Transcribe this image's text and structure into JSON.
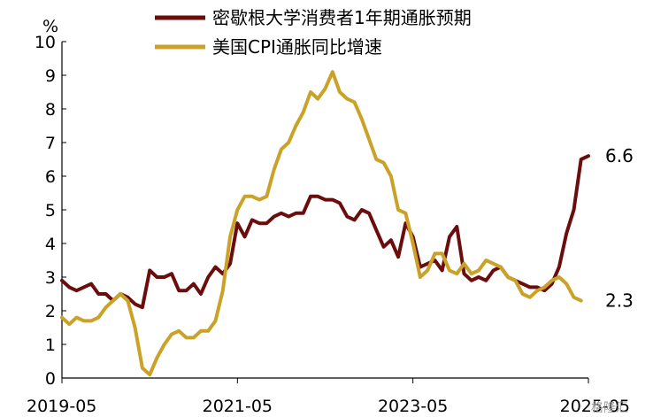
{
  "chart_data": {
    "type": "line",
    "ylabel": "%",
    "ylim": [
      0,
      10
    ],
    "yticks": [
      "0",
      "1",
      "2",
      "3",
      "4",
      "5",
      "6",
      "7",
      "8",
      "9",
      "10"
    ],
    "xticks": [
      "2019-05",
      "2021-05",
      "2023-05",
      "2025-05"
    ],
    "xlim": [
      "2019-05",
      "2025-05"
    ],
    "legend": "top",
    "grid": false,
    "series": [
      {
        "name": "密歇根大学消费者1年期通胀预期",
        "color": "#6b0d0d",
        "end_label": "6.6",
        "points": [
          [
            "2019-05",
            2.9
          ],
          [
            "2019-06",
            2.7
          ],
          [
            "2019-07",
            2.6
          ],
          [
            "2019-08",
            2.7
          ],
          [
            "2019-09",
            2.8
          ],
          [
            "2019-10",
            2.5
          ],
          [
            "2019-11",
            2.5
          ],
          [
            "2019-12",
            2.3
          ],
          [
            "2020-01",
            2.5
          ],
          [
            "2020-02",
            2.4
          ],
          [
            "2020-03",
            2.2
          ],
          [
            "2020-04",
            2.1
          ],
          [
            "2020-05",
            3.2
          ],
          [
            "2020-06",
            3.0
          ],
          [
            "2020-07",
            3.0
          ],
          [
            "2020-08",
            3.1
          ],
          [
            "2020-09",
            2.6
          ],
          [
            "2020-10",
            2.6
          ],
          [
            "2020-11",
            2.8
          ],
          [
            "2020-12",
            2.5
          ],
          [
            "2021-01",
            3.0
          ],
          [
            "2021-02",
            3.3
          ],
          [
            "2021-03",
            3.1
          ],
          [
            "2021-04",
            3.4
          ],
          [
            "2021-05",
            4.6
          ],
          [
            "2021-06",
            4.2
          ],
          [
            "2021-07",
            4.7
          ],
          [
            "2021-08",
            4.6
          ],
          [
            "2021-09",
            4.6
          ],
          [
            "2021-10",
            4.8
          ],
          [
            "2021-11",
            4.9
          ],
          [
            "2021-12",
            4.8
          ],
          [
            "2022-01",
            4.9
          ],
          [
            "2022-02",
            4.9
          ],
          [
            "2022-03",
            5.4
          ],
          [
            "2022-04",
            5.4
          ],
          [
            "2022-05",
            5.3
          ],
          [
            "2022-06",
            5.3
          ],
          [
            "2022-07",
            5.2
          ],
          [
            "2022-08",
            4.8
          ],
          [
            "2022-09",
            4.7
          ],
          [
            "2022-10",
            5.0
          ],
          [
            "2022-11",
            4.9
          ],
          [
            "2022-12",
            4.4
          ],
          [
            "2023-01",
            3.9
          ],
          [
            "2023-02",
            4.1
          ],
          [
            "2023-03",
            3.6
          ],
          [
            "2023-04",
            4.6
          ],
          [
            "2023-05",
            4.2
          ],
          [
            "2023-06",
            3.3
          ],
          [
            "2023-07",
            3.4
          ],
          [
            "2023-08",
            3.5
          ],
          [
            "2023-09",
            3.2
          ],
          [
            "2023-10",
            4.2
          ],
          [
            "2023-11",
            4.5
          ],
          [
            "2023-12",
            3.1
          ],
          [
            "2024-01",
            2.9
          ],
          [
            "2024-02",
            3.0
          ],
          [
            "2024-03",
            2.9
          ],
          [
            "2024-04",
            3.2
          ],
          [
            "2024-05",
            3.3
          ],
          [
            "2024-06",
            3.0
          ],
          [
            "2024-07",
            2.9
          ],
          [
            "2024-08",
            2.8
          ],
          [
            "2024-09",
            2.7
          ],
          [
            "2024-10",
            2.7
          ],
          [
            "2024-11",
            2.6
          ],
          [
            "2024-12",
            2.8
          ],
          [
            "2025-01",
            3.3
          ],
          [
            "2025-02",
            4.3
          ],
          [
            "2025-03",
            5.0
          ],
          [
            "2025-04",
            6.5
          ],
          [
            "2025-05",
            6.6
          ]
        ]
      },
      {
        "name": "美国CPI通胀同比增速",
        "color": "#c9a227",
        "end_label": "2.3",
        "points": [
          [
            "2019-05",
            1.8
          ],
          [
            "2019-06",
            1.6
          ],
          [
            "2019-07",
            1.8
          ],
          [
            "2019-08",
            1.7
          ],
          [
            "2019-09",
            1.7
          ],
          [
            "2019-10",
            1.8
          ],
          [
            "2019-11",
            2.1
          ],
          [
            "2019-12",
            2.3
          ],
          [
            "2020-01",
            2.5
          ],
          [
            "2020-02",
            2.3
          ],
          [
            "2020-03",
            1.5
          ],
          [
            "2020-04",
            0.3
          ],
          [
            "2020-05",
            0.1
          ],
          [
            "2020-06",
            0.6
          ],
          [
            "2020-07",
            1.0
          ],
          [
            "2020-08",
            1.3
          ],
          [
            "2020-09",
            1.4
          ],
          [
            "2020-10",
            1.2
          ],
          [
            "2020-11",
            1.2
          ],
          [
            "2020-12",
            1.4
          ],
          [
            "2021-01",
            1.4
          ],
          [
            "2021-02",
            1.7
          ],
          [
            "2021-03",
            2.6
          ],
          [
            "2021-04",
            4.2
          ],
          [
            "2021-05",
            5.0
          ],
          [
            "2021-06",
            5.4
          ],
          [
            "2021-07",
            5.4
          ],
          [
            "2021-08",
            5.3
          ],
          [
            "2021-09",
            5.4
          ],
          [
            "2021-10",
            6.2
          ],
          [
            "2021-11",
            6.8
          ],
          [
            "2021-12",
            7.0
          ],
          [
            "2022-01",
            7.5
          ],
          [
            "2022-02",
            7.9
          ],
          [
            "2022-03",
            8.5
          ],
          [
            "2022-04",
            8.3
          ],
          [
            "2022-05",
            8.6
          ],
          [
            "2022-06",
            9.1
          ],
          [
            "2022-07",
            8.5
          ],
          [
            "2022-08",
            8.3
          ],
          [
            "2022-09",
            8.2
          ],
          [
            "2022-10",
            7.7
          ],
          [
            "2022-11",
            7.1
          ],
          [
            "2022-12",
            6.5
          ],
          [
            "2023-01",
            6.4
          ],
          [
            "2023-02",
            6.0
          ],
          [
            "2023-03",
            5.0
          ],
          [
            "2023-04",
            4.9
          ],
          [
            "2023-05",
            4.0
          ],
          [
            "2023-06",
            3.0
          ],
          [
            "2023-07",
            3.2
          ],
          [
            "2023-08",
            3.7
          ],
          [
            "2023-09",
            3.7
          ],
          [
            "2023-10",
            3.2
          ],
          [
            "2023-11",
            3.1
          ],
          [
            "2023-12",
            3.4
          ],
          [
            "2024-01",
            3.1
          ],
          [
            "2024-02",
            3.2
          ],
          [
            "2024-03",
            3.5
          ],
          [
            "2024-04",
            3.4
          ],
          [
            "2024-05",
            3.3
          ],
          [
            "2024-06",
            3.0
          ],
          [
            "2024-07",
            2.9
          ],
          [
            "2024-08",
            2.5
          ],
          [
            "2024-09",
            2.4
          ],
          [
            "2024-10",
            2.6
          ],
          [
            "2024-11",
            2.7
          ],
          [
            "2024-12",
            2.9
          ],
          [
            "2025-01",
            3.0
          ],
          [
            "2025-02",
            2.8
          ],
          [
            "2025-03",
            2.4
          ],
          [
            "2025-04",
            2.3
          ]
        ]
      }
    ]
  },
  "watermark": "格隆汇"
}
